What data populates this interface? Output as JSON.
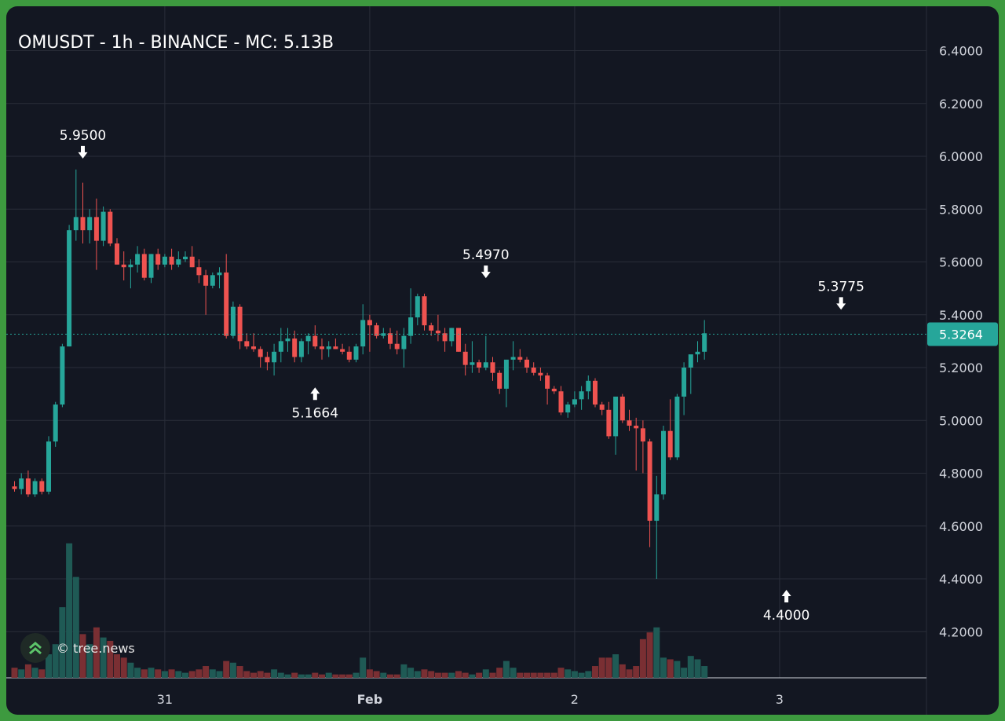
{
  "title": "OMUSDT - 1h - BINANCE - MC: 5.13B",
  "watermark": {
    "text": "© tree.news",
    "icon": "tree-news-logo-icon"
  },
  "colors": {
    "background": "#131722",
    "frame": "#3d9a3f",
    "up": "#26a69a",
    "down": "#ef5350",
    "grid": "#2a2e39",
    "axis_text": "#d1d4dc",
    "last_price_badge": "#26a69a"
  },
  "last_price": {
    "label": "5.3264",
    "value": 5.3264
  },
  "chart_data": {
    "type": "candlestick",
    "symbol": "OMUSDT",
    "interval": "1h",
    "exchange": "BINANCE",
    "y_ticks": [
      "6.4000",
      "6.2000",
      "6.0000",
      "5.8000",
      "5.6000",
      "5.4000",
      "5.2000",
      "5.0000",
      "4.8000",
      "4.6000",
      "4.4000",
      "4.2000"
    ],
    "x_ticks": [
      {
        "label": "31",
        "index": 22
      },
      {
        "label": "Feb",
        "index": 52
      },
      {
        "label": "2",
        "index": 82
      },
      {
        "label": "3",
        "index": 112
      }
    ],
    "ylim": [
      4.03,
      6.56
    ],
    "grid": true,
    "annotations": [
      {
        "label": "5.9500",
        "index": 10,
        "value": 5.95,
        "type": "high"
      },
      {
        "label": "5.1664",
        "index": 44,
        "value": 5.1664,
        "type": "low"
      },
      {
        "label": "5.4970",
        "index": 69,
        "value": 5.497,
        "type": "high"
      },
      {
        "label": "4.4000",
        "index": 113,
        "value": 4.4,
        "type": "low"
      },
      {
        "label": "5.3775",
        "index": 121,
        "value": 5.3775,
        "type": "high"
      }
    ],
    "candles": [
      [
        4.75,
        4.77,
        4.73,
        4.74,
        0.06
      ],
      [
        4.74,
        4.8,
        4.72,
        4.78,
        0.05
      ],
      [
        4.78,
        4.81,
        4.71,
        4.72,
        0.08
      ],
      [
        4.72,
        4.78,
        4.71,
        4.77,
        0.06
      ],
      [
        4.77,
        4.78,
        4.72,
        4.73,
        0.05
      ],
      [
        4.73,
        4.94,
        4.72,
        4.92,
        0.14
      ],
      [
        4.92,
        5.07,
        4.9,
        5.06,
        0.2
      ],
      [
        5.06,
        5.29,
        5.05,
        5.28,
        0.42
      ],
      [
        5.28,
        5.74,
        5.28,
        5.72,
        0.8
      ],
      [
        5.72,
        5.95,
        5.68,
        5.77,
        0.6
      ],
      [
        5.77,
        5.9,
        5.67,
        5.72,
        0.26
      ],
      [
        5.72,
        5.8,
        5.67,
        5.77,
        0.2
      ],
      [
        5.77,
        5.84,
        5.57,
        5.68,
        0.3
      ],
      [
        5.68,
        5.81,
        5.66,
        5.79,
        0.24
      ],
      [
        5.79,
        5.8,
        5.66,
        5.67,
        0.22
      ],
      [
        5.67,
        5.69,
        5.59,
        5.59,
        0.14
      ],
      [
        5.59,
        5.64,
        5.53,
        5.58,
        0.12
      ],
      [
        5.58,
        5.61,
        5.5,
        5.59,
        0.09
      ],
      [
        5.59,
        5.66,
        5.56,
        5.63,
        0.06
      ],
      [
        5.63,
        5.65,
        5.53,
        5.54,
        0.05
      ],
      [
        5.54,
        5.63,
        5.52,
        5.63,
        0.06
      ],
      [
        5.63,
        5.65,
        5.57,
        5.59,
        0.05
      ],
      [
        5.59,
        5.63,
        5.58,
        5.62,
        0.04
      ],
      [
        5.62,
        5.65,
        5.57,
        5.59,
        0.05
      ],
      [
        5.59,
        5.64,
        5.58,
        5.61,
        0.04
      ],
      [
        5.61,
        5.64,
        5.6,
        5.62,
        0.03
      ],
      [
        5.62,
        5.66,
        5.58,
        5.58,
        0.04
      ],
      [
        5.58,
        5.61,
        5.52,
        5.55,
        0.05
      ],
      [
        5.55,
        5.57,
        5.4,
        5.51,
        0.07
      ],
      [
        5.51,
        5.56,
        5.5,
        5.55,
        0.05
      ],
      [
        5.55,
        5.58,
        5.5,
        5.56,
        0.04
      ],
      [
        5.56,
        5.63,
        5.31,
        5.32,
        0.1
      ],
      [
        5.32,
        5.45,
        5.31,
        5.43,
        0.09
      ],
      [
        5.43,
        5.44,
        5.27,
        5.3,
        0.07
      ],
      [
        5.3,
        5.33,
        5.27,
        5.28,
        0.04
      ],
      [
        5.28,
        5.33,
        5.26,
        5.27,
        0.03
      ],
      [
        5.27,
        5.28,
        5.2,
        5.24,
        0.04
      ],
      [
        5.24,
        5.26,
        5.19,
        5.22,
        0.03
      ],
      [
        5.22,
        5.29,
        5.17,
        5.26,
        0.05
      ],
      [
        5.26,
        5.35,
        5.22,
        5.3,
        0.03
      ],
      [
        5.3,
        5.35,
        5.26,
        5.31,
        0.02
      ],
      [
        5.31,
        5.34,
        5.22,
        5.24,
        0.03
      ],
      [
        5.24,
        5.31,
        5.22,
        5.3,
        0.02
      ],
      [
        5.3,
        5.33,
        5.25,
        5.32,
        0.02
      ],
      [
        5.32,
        5.36,
        5.27,
        5.28,
        0.03
      ],
      [
        5.28,
        5.31,
        5.23,
        5.27,
        0.02
      ],
      [
        5.27,
        5.3,
        5.24,
        5.28,
        0.03
      ],
      [
        5.28,
        5.31,
        5.27,
        5.27,
        0.02
      ],
      [
        5.27,
        5.29,
        5.25,
        5.26,
        0.02
      ],
      [
        5.26,
        5.28,
        5.22,
        5.23,
        0.02
      ],
      [
        5.23,
        5.29,
        5.22,
        5.28,
        0.03
      ],
      [
        5.28,
        5.44,
        5.25,
        5.38,
        0.12
      ],
      [
        5.38,
        5.4,
        5.26,
        5.36,
        0.05
      ],
      [
        5.36,
        5.37,
        5.31,
        5.32,
        0.04
      ],
      [
        5.32,
        5.35,
        5.31,
        5.33,
        0.03
      ],
      [
        5.33,
        5.35,
        5.27,
        5.29,
        0.02
      ],
      [
        5.29,
        5.34,
        5.25,
        5.27,
        0.02
      ],
      [
        5.27,
        5.35,
        5.2,
        5.32,
        0.08
      ],
      [
        5.32,
        5.5,
        5.29,
        5.39,
        0.06
      ],
      [
        5.39,
        5.48,
        5.36,
        5.47,
        0.04
      ],
      [
        5.47,
        5.48,
        5.34,
        5.36,
        0.05
      ],
      [
        5.36,
        5.37,
        5.32,
        5.34,
        0.04
      ],
      [
        5.34,
        5.4,
        5.3,
        5.33,
        0.03
      ],
      [
        5.33,
        5.35,
        5.26,
        5.3,
        0.03
      ],
      [
        5.3,
        5.35,
        5.28,
        5.35,
        0.03
      ],
      [
        5.35,
        5.35,
        5.26,
        5.26,
        0.04
      ],
      [
        5.26,
        5.29,
        5.17,
        5.21,
        0.03
      ],
      [
        5.21,
        5.3,
        5.18,
        5.22,
        0.02
      ],
      [
        5.22,
        5.23,
        5.18,
        5.2,
        0.03
      ],
      [
        5.2,
        5.32,
        5.19,
        5.22,
        0.05
      ],
      [
        5.22,
        5.24,
        5.15,
        5.18,
        0.03
      ],
      [
        5.18,
        5.19,
        5.1,
        5.12,
        0.06
      ],
      [
        5.12,
        5.21,
        5.05,
        5.23,
        0.1
      ],
      [
        5.23,
        5.3,
        5.19,
        5.24,
        0.06
      ],
      [
        5.24,
        5.27,
        5.22,
        5.23,
        0.03
      ],
      [
        5.23,
        5.24,
        5.18,
        5.2,
        0.03
      ],
      [
        5.2,
        5.22,
        5.17,
        5.18,
        0.03
      ],
      [
        5.18,
        5.2,
        5.15,
        5.17,
        0.03
      ],
      [
        5.17,
        5.18,
        5.06,
        5.12,
        0.03
      ],
      [
        5.12,
        5.13,
        5.1,
        5.11,
        0.03
      ],
      [
        5.11,
        5.13,
        5.02,
        5.03,
        0.06
      ],
      [
        5.03,
        5.07,
        5.01,
        5.06,
        0.05
      ],
      [
        5.06,
        5.11,
        5.05,
        5.08,
        0.04
      ],
      [
        5.08,
        5.13,
        5.04,
        5.11,
        0.03
      ],
      [
        5.11,
        5.17,
        5.08,
        5.15,
        0.04
      ],
      [
        5.15,
        5.16,
        5.05,
        5.06,
        0.07
      ],
      [
        5.06,
        5.07,
        5.02,
        5.04,
        0.12
      ],
      [
        5.04,
        5.07,
        4.93,
        4.94,
        0.12
      ],
      [
        4.94,
        5.09,
        4.87,
        5.09,
        0.14
      ],
      [
        5.09,
        5.1,
        4.99,
        5.0,
        0.08
      ],
      [
        5.0,
        5.04,
        4.96,
        4.98,
        0.05
      ],
      [
        4.98,
        5.01,
        4.81,
        4.97,
        0.07
      ],
      [
        4.97,
        5.0,
        4.8,
        4.92,
        0.23
      ],
      [
        4.92,
        4.93,
        4.52,
        4.62,
        0.27
      ],
      [
        4.62,
        4.79,
        4.4,
        4.72,
        0.3
      ],
      [
        4.72,
        4.98,
        4.7,
        4.96,
        0.12
      ],
      [
        4.96,
        5.08,
        4.85,
        4.86,
        0.11
      ],
      [
        4.86,
        5.1,
        4.85,
        5.09,
        0.1
      ],
      [
        5.09,
        5.22,
        5.02,
        5.2,
        0.06
      ],
      [
        5.2,
        5.24,
        5.1,
        5.25,
        0.13
      ],
      [
        5.25,
        5.3,
        5.22,
        5.26,
        0.11
      ],
      [
        5.26,
        5.38,
        5.23,
        5.33,
        0.07
      ]
    ]
  }
}
